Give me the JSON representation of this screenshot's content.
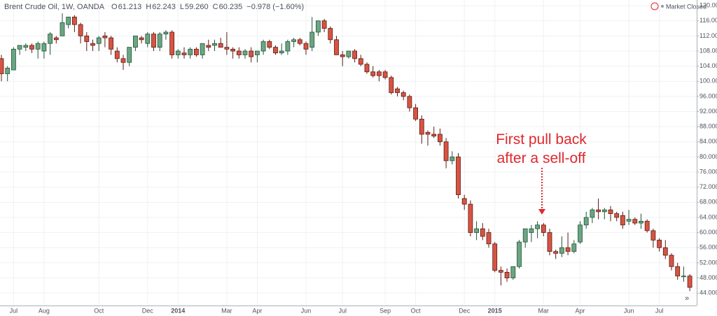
{
  "chart_data": {
    "type": "candlestick",
    "title": "Brent Crude Oil, 1W, OANDA",
    "ohlc_readout": [
      {
        "label": "O",
        "value": "61.213"
      },
      {
        "label": "H",
        "value": "62.243"
      },
      {
        "label": "L",
        "value": "59.260"
      },
      {
        "label": "C",
        "value": "60.235"
      }
    ],
    "change": "−0.978 (−1.60%)",
    "status": "Market Closed",
    "annotation": [
      "First pull back",
      "after a sell-off"
    ],
    "up_color": "#6ba583",
    "down_color": "#d75442",
    "categories": [
      null,
      null,
      "Jul",
      null,
      null,
      null,
      null,
      "Aug",
      null,
      null,
      null,
      null,
      null,
      null,
      null,
      null,
      "Oct",
      null,
      null,
      null,
      null,
      null,
      null,
      null,
      "Dec",
      null,
      null,
      null,
      null,
      "2014",
      null,
      null,
      null,
      null,
      null,
      null,
      null,
      "Mar",
      null,
      null,
      null,
      null,
      "Apr",
      null,
      null,
      null,
      null,
      null,
      null,
      null,
      "Jun",
      null,
      null,
      null,
      null,
      null,
      "Jul",
      null,
      null,
      null,
      null,
      null,
      null,
      "Sep",
      null,
      null,
      null,
      null,
      "Oct",
      null,
      null,
      null,
      null,
      null,
      null,
      null,
      "Dec",
      null,
      null,
      null,
      null,
      "2015",
      null,
      null,
      null,
      null,
      null,
      null,
      null,
      "Mar",
      null,
      null,
      null,
      null,
      null,
      "Apr",
      null,
      null,
      null,
      null,
      null,
      null,
      null,
      "Jun",
      null,
      null,
      null,
      null,
      "Jul",
      null,
      null,
      null,
      null,
      null
    ],
    "open": [
      106,
      102,
      103,
      108.5,
      109,
      109.5,
      108.5,
      108,
      110,
      111.5,
      112,
      115,
      117,
      115,
      112,
      110,
      110,
      112,
      111.5,
      108,
      106,
      105,
      109,
      111.5,
      110,
      112.5,
      109,
      112.5,
      113,
      107,
      107.5,
      107,
      108.5,
      107,
      109.5,
      109.5,
      110,
      109,
      108.5,
      108,
      107,
      108,
      107,
      108,
      110.5,
      109,
      107.5,
      108,
      110.5,
      111,
      110,
      109,
      113,
      116,
      114,
      111,
      107,
      106.5,
      108,
      106,
      104.5,
      102.5,
      102.5,
      102.5,
      101,
      98,
      97,
      96,
      93,
      90,
      86.5,
      86,
      86,
      84,
      79,
      80,
      69,
      67.5,
      60,
      61,
      60,
      57,
      50,
      49.5,
      48,
      51,
      57.5,
      60,
      61,
      62,
      60,
      55,
      54.5,
      56,
      55,
      57.5,
      62,
      64,
      66,
      65.5,
      66,
      65,
      64.5,
      63,
      63.5,
      62.5,
      63,
      60.5,
      58,
      56,
      54,
      51,
      48.5,
      48.5
    ],
    "high": [
      107,
      104,
      109,
      109.5,
      110,
      110,
      110.5,
      110.5,
      113,
      112,
      118,
      117,
      117.5,
      115.5,
      113,
      111,
      112,
      113,
      112,
      109,
      107,
      109,
      112,
      112,
      113,
      113,
      113,
      113.5,
      113.5,
      108.5,
      109,
      109,
      109,
      110,
      111,
      111,
      111.5,
      113,
      109,
      109,
      108.5,
      109,
      108,
      111,
      111,
      109.5,
      110,
      111,
      111.5,
      111.5,
      110.5,
      117,
      116,
      116.5,
      114.5,
      112,
      108,
      108,
      108.5,
      107,
      105,
      104,
      103,
      103,
      101.5,
      98.5,
      97.5,
      96.5,
      94,
      91,
      87,
      88,
      87.5,
      85,
      81.5,
      81,
      70,
      68.5,
      63,
      62.5,
      61,
      57.5,
      51,
      50.5,
      51,
      58,
      61,
      62,
      63,
      62.5,
      61,
      55.5,
      59,
      60,
      58,
      63,
      65.5,
      66.5,
      69,
      66.5,
      67,
      65.5,
      65.5,
      66,
      64,
      65,
      63.5,
      61,
      58.5,
      58,
      54.5,
      52,
      51,
      49
    ],
    "low": [
      100,
      100,
      103,
      107,
      108,
      107.5,
      106,
      106,
      107,
      110,
      112,
      114,
      113,
      110,
      108,
      108,
      108,
      109,
      107,
      105,
      103,
      104,
      108,
      110,
      109,
      108,
      108,
      111,
      106,
      106,
      106,
      106,
      106.5,
      106,
      108,
      108,
      109,
      107,
      106,
      106,
      106,
      105,
      105,
      107,
      108.5,
      107,
      107,
      107,
      109,
      109.5,
      107,
      108,
      112,
      113,
      110,
      107,
      104,
      106,
      105,
      104,
      102,
      101,
      100,
      100.5,
      96.5,
      96,
      95,
      92,
      89.5,
      83.5,
      83,
      85,
      83,
      77,
      78,
      69,
      66,
      59,
      58,
      58,
      56,
      49.5,
      46,
      47,
      47.5,
      50.5,
      56,
      57.5,
      58.5,
      59,
      54,
      53,
      53.5,
      54,
      54.5,
      57,
      61,
      62.5,
      63.5,
      63.5,
      63,
      63,
      61,
      62,
      62,
      61,
      60,
      56,
      55,
      53,
      50,
      47.5,
      47,
      44.5
    ],
    "close": [
      102,
      103.5,
      108.5,
      109.5,
      109.5,
      108.5,
      110,
      110,
      112.5,
      111,
      115.5,
      117,
      115,
      112,
      110.5,
      109.5,
      111.5,
      111.5,
      108.5,
      106,
      105,
      109,
      112,
      111,
      112.5,
      109,
      112.5,
      113,
      107,
      108,
      107,
      108.5,
      107,
      110,
      109,
      110,
      109,
      108.5,
      108,
      107,
      108,
      106.5,
      108,
      110.5,
      109,
      107.5,
      108,
      110.5,
      111,
      110,
      108.5,
      113,
      116,
      114,
      111,
      107,
      106.5,
      108,
      106,
      104.5,
      102.5,
      101.5,
      101.5,
      101,
      97,
      97,
      96,
      93,
      90,
      86,
      86,
      85.5,
      84,
      79,
      80,
      70,
      67.5,
      60,
      61,
      59,
      57,
      50,
      49.5,
      48,
      51,
      57.5,
      61,
      61,
      62,
      60,
      55,
      54.5,
      56,
      55,
      57,
      62,
      64,
      66,
      65.5,
      66,
      65,
      64,
      62,
      63.5,
      62.5,
      63,
      60.5,
      58,
      56,
      54,
      51,
      48.5,
      48.5,
      45.5
    ],
    "ylim": [
      40.7,
      121.5
    ],
    "yticks": [
      {
        "value": 44,
        "label": "44.000"
      },
      {
        "value": 48,
        "label": "48.000"
      },
      {
        "value": 52,
        "label": "52.000"
      },
      {
        "value": 56,
        "label": "56.000"
      },
      {
        "value": 60,
        "label": "60.000"
      },
      {
        "value": 64,
        "label": "64.000"
      },
      {
        "value": 68,
        "label": "68.000"
      },
      {
        "value": 72,
        "label": "72.000"
      },
      {
        "value": 76,
        "label": "76.000"
      },
      {
        "value": 80,
        "label": "80.000"
      },
      {
        "value": 84,
        "label": "84.000"
      },
      {
        "value": 88,
        "label": "88.000"
      },
      {
        "value": 92,
        "label": "92.000"
      },
      {
        "value": 96,
        "label": "96.000"
      },
      {
        "value": 100,
        "label": "100.000"
      },
      {
        "value": 104,
        "label": "104.000"
      },
      {
        "value": 108,
        "label": "108.000"
      },
      {
        "value": 112,
        "label": "112.000"
      },
      {
        "value": 116,
        "label": "116.000"
      },
      {
        "value": 120,
        "label": "120.000"
      }
    ],
    "grid": true
  }
}
